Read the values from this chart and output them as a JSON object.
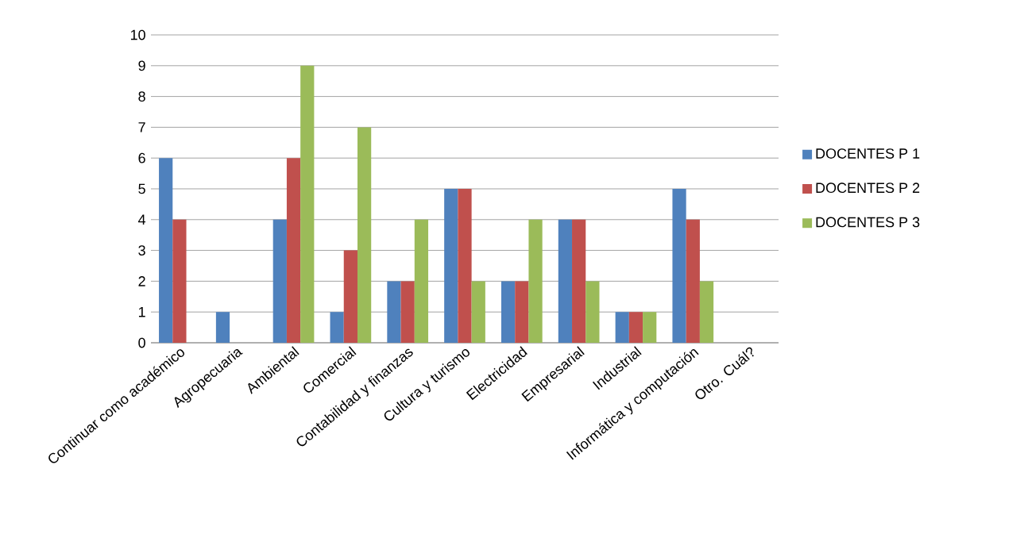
{
  "chart_data": {
    "type": "bar",
    "categories": [
      "Continuar como académico",
      "Agropecuaria",
      "Ambiental",
      "Comercial",
      "Contabilidad y finanzas",
      "Cultura y turismo",
      "Electricidad",
      "Empresarial",
      "Industrial",
      "Informática y computación",
      "Otro. Cuál?"
    ],
    "series": [
      {
        "name": "DOCENTES P 1",
        "color": "#4f81bd",
        "values": [
          6,
          1,
          4,
          1,
          2,
          5,
          2,
          4,
          1,
          5,
          0
        ]
      },
      {
        "name": "DOCENTES P 2",
        "color": "#c0504d",
        "values": [
          4,
          0,
          6,
          3,
          2,
          5,
          2,
          4,
          1,
          4,
          0
        ]
      },
      {
        "name": "DOCENTES P 3",
        "color": "#9bbb59",
        "values": [
          0,
          0,
          9,
          7,
          4,
          2,
          4,
          2,
          1,
          2,
          0
        ]
      }
    ],
    "ylim": [
      0,
      10
    ],
    "yticks": [
      0,
      1,
      2,
      3,
      4,
      5,
      6,
      7,
      8,
      9,
      10
    ],
    "grid": "y",
    "legend": "right"
  }
}
